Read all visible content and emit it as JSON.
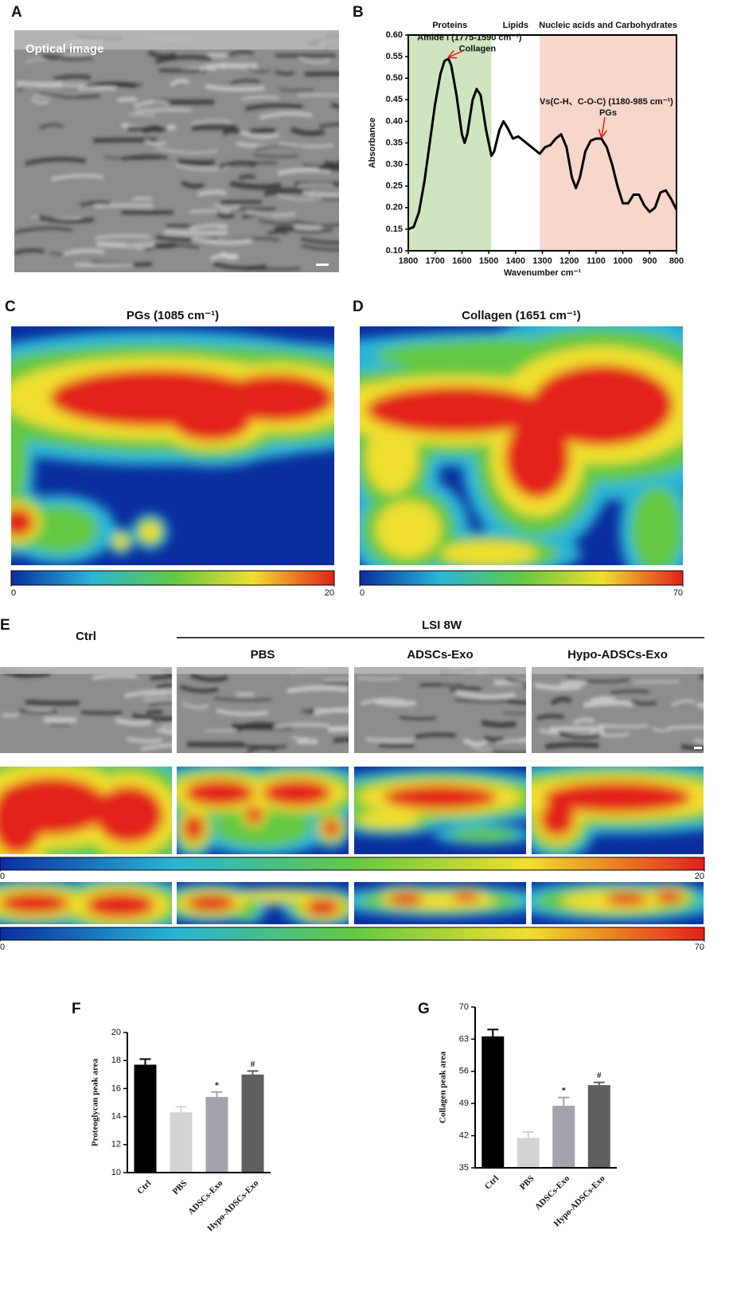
{
  "chart_data": [
    {
      "type": "image",
      "panel": "A",
      "label": "Optical image"
    },
    {
      "type": "line",
      "panel": "B",
      "xlabel": "Wavenumber cm⁻¹",
      "ylabel": "Absorbance",
      "color": "#000000",
      "xlim": [
        1800,
        800
      ],
      "ylim": [
        0.1,
        0.6
      ],
      "xticks": [
        1800,
        1700,
        1600,
        1500,
        1400,
        1300,
        1200,
        1100,
        1000,
        900,
        800
      ],
      "yticks": [
        {
          "value": 0.1,
          "label": "0.10"
        },
        0.15,
        {
          "value": 0.2,
          "label": "0.20"
        },
        0.25,
        {
          "value": 0.3,
          "label": "0.30"
        },
        0.35,
        {
          "value": 0.4,
          "label": "0.40"
        },
        0.45,
        {
          "value": 0.5,
          "label": "0.50"
        },
        0.55,
        {
          "value": 0.6,
          "label": "0.60"
        }
      ],
      "regions": [
        {
          "name": "Proteins",
          "from": 1800,
          "to": 1490,
          "color": "#cfe5bf"
        },
        {
          "name": "Lipids",
          "from": 1490,
          "to": 1310,
          "color": "#ffffff"
        },
        {
          "name": "Nucleic acids and Carbohydrates",
          "from": 1310,
          "to": 800,
          "color": "#f7d6cb"
        }
      ],
      "annotations": [
        {
          "text": "Amide I (1775-1590 cm⁻¹)",
          "subtext": "Collagen",
          "x": 1655,
          "y": 0.545
        },
        {
          "text": "Vs(C-H、C-O-C) (1180-985 cm⁻¹)",
          "subtext": "PGs",
          "x": 1085,
          "y": 0.36
        }
      ],
      "x": [
        1800,
        1780,
        1760,
        1740,
        1720,
        1700,
        1680,
        1665,
        1650,
        1640,
        1620,
        1600,
        1590,
        1580,
        1560,
        1545,
        1530,
        1510,
        1490,
        1480,
        1460,
        1445,
        1430,
        1410,
        1390,
        1370,
        1350,
        1330,
        1310,
        1290,
        1270,
        1250,
        1230,
        1210,
        1190,
        1175,
        1160,
        1140,
        1120,
        1100,
        1080,
        1060,
        1040,
        1020,
        1000,
        980,
        960,
        940,
        920,
        900,
        880,
        860,
        840,
        820,
        800
      ],
      "values": [
        0.15,
        0.155,
        0.19,
        0.26,
        0.35,
        0.44,
        0.51,
        0.54,
        0.545,
        0.53,
        0.46,
        0.37,
        0.35,
        0.37,
        0.45,
        0.475,
        0.46,
        0.38,
        0.32,
        0.33,
        0.38,
        0.4,
        0.385,
        0.36,
        0.365,
        0.355,
        0.345,
        0.335,
        0.325,
        0.34,
        0.345,
        0.36,
        0.37,
        0.34,
        0.27,
        0.245,
        0.27,
        0.33,
        0.355,
        0.36,
        0.36,
        0.34,
        0.3,
        0.25,
        0.21,
        0.21,
        0.23,
        0.23,
        0.205,
        0.19,
        0.2,
        0.235,
        0.24,
        0.22,
        0.195
      ]
    },
    {
      "type": "heatmap",
      "panel": "C",
      "title": "PGs (1085 cm⁻¹)",
      "colormap": [
        "#0a2e9e",
        "#2ab6d6",
        "#62c843",
        "#f0df2e",
        "#e3201b"
      ],
      "clim": [
        0,
        20
      ],
      "cticks": [
        0,
        20
      ]
    },
    {
      "type": "heatmap",
      "panel": "D",
      "title": "Collagen (1651 cm⁻¹)",
      "colormap": [
        "#0a2e9e",
        "#2ab6d6",
        "#62c843",
        "#f0df2e",
        "#e3201b"
      ],
      "clim": [
        0,
        70
      ],
      "cticks": [
        0,
        70
      ]
    },
    {
      "type": "heatmap_grid",
      "panel": "E",
      "group": "LSI 8W",
      "columns": [
        "Ctrl",
        "PBS",
        "ADSCs-Exo",
        "Hypo-ADSCs-Exo"
      ],
      "colormap": [
        "#0a2e9e",
        "#2ab6d6",
        "#62c843",
        "#f0df2e",
        "#e3201b"
      ],
      "rows": [
        {
          "clim": [
            0,
            20
          ],
          "cticks": [
            0,
            20
          ]
        },
        {
          "clim": [
            0,
            70
          ],
          "cticks": [
            0,
            70
          ]
        }
      ]
    },
    {
      "type": "bar",
      "panel": "F",
      "ylabel": "Proteoglycan peak area",
      "categories": [
        "Ctrl",
        "PBS",
        "ADSCs-Exo",
        "Hypo-ADSCs-Exo"
      ],
      "values": [
        17.7,
        14.3,
        15.4,
        17.0
      ],
      "errors": [
        0.4,
        0.4,
        0.35,
        0.25
      ],
      "markers": [
        null,
        null,
        "*",
        "#"
      ],
      "colors": [
        "#000000",
        "#d4d4d4",
        "#a3a3ab",
        "#5f5f5f"
      ],
      "ylim": [
        10,
        20
      ],
      "yticks": [
        10,
        12,
        14,
        16,
        18,
        20
      ]
    },
    {
      "type": "bar",
      "panel": "G",
      "ylabel": "Collagen peak area",
      "categories": [
        "Ctrl",
        "PBS",
        "ADSCs-Exo",
        "Hypo-ADSCs-Exo"
      ],
      "values": [
        63.6,
        41.5,
        48.5,
        53.0
      ],
      "errors": [
        1.5,
        1.3,
        1.8,
        0.6
      ],
      "markers": [
        null,
        null,
        "*",
        "#"
      ],
      "colors": [
        "#000000",
        "#d4d4d4",
        "#a3a3ab",
        "#5f5f5f"
      ],
      "ylim": [
        35,
        70
      ],
      "yticks": [
        35,
        42,
        49,
        56,
        63,
        70
      ]
    }
  ]
}
